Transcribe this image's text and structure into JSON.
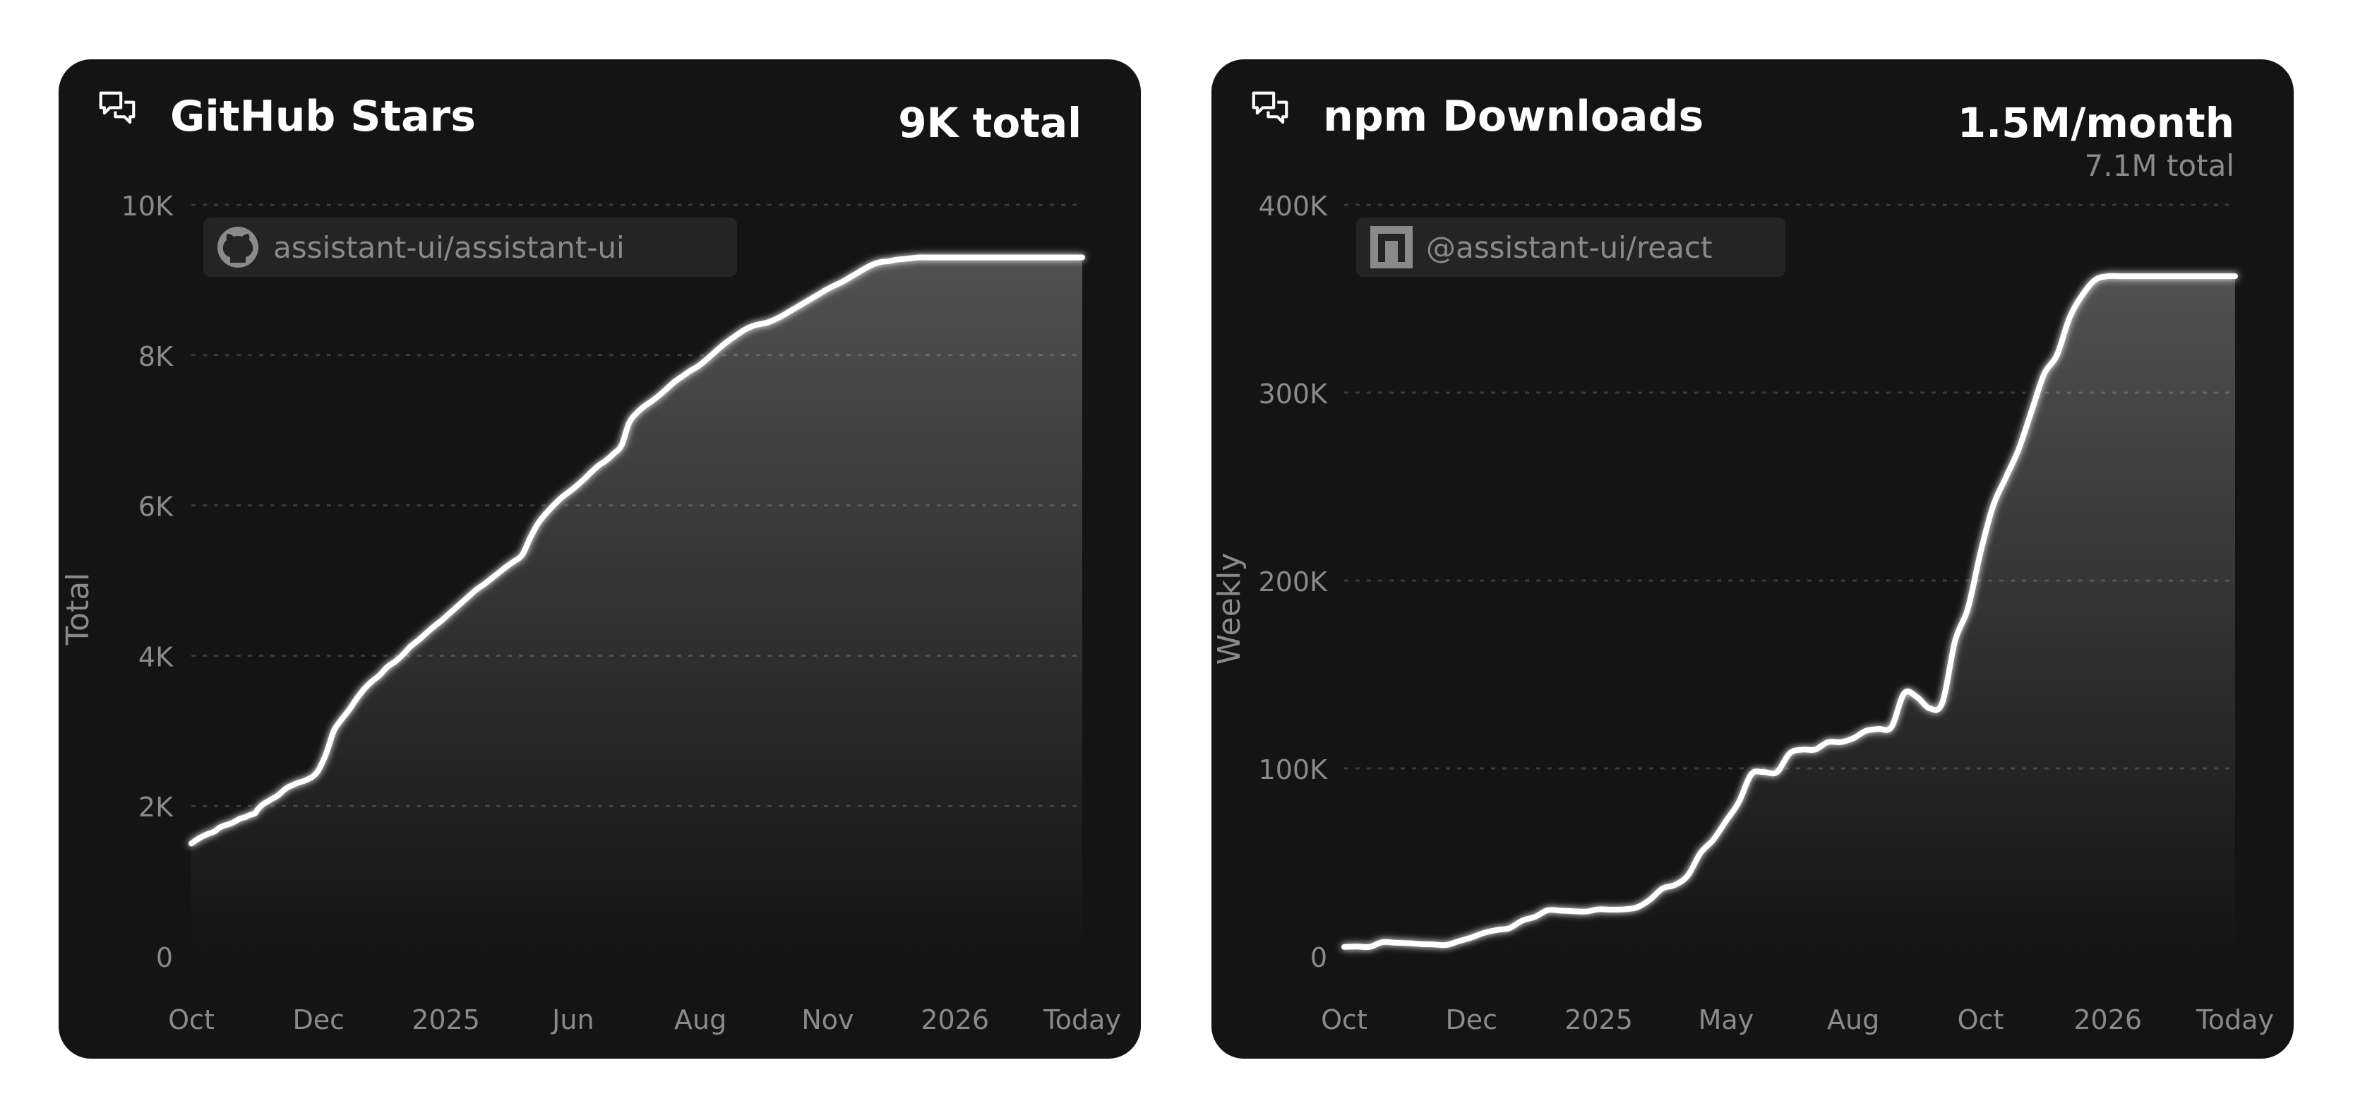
{
  "colors": {
    "card_bg": "#141414",
    "line": "#ffffff",
    "muted_text": "#8a8a8a",
    "grid": "#3a3a3a",
    "badge_bg": "#242424"
  },
  "chart_data": [
    {
      "type": "area",
      "title": "GitHub Stars",
      "title_icon": "chat-bubbles-icon",
      "total_label": "9K total",
      "ylabel": "Total",
      "ylim": [
        0,
        10000
      ],
      "y_ticks": [
        {
          "value": 0,
          "label": "0"
        },
        {
          "value": 2000,
          "label": "2K"
        },
        {
          "value": 4000,
          "label": "4K"
        },
        {
          "value": 6000,
          "label": "6K"
        },
        {
          "value": 8000,
          "label": "8K"
        },
        {
          "value": 10000,
          "label": "10K"
        }
      ],
      "x_ticks": [
        "Oct",
        "Dec",
        "2025",
        "Jun",
        "Aug",
        "Nov",
        "2026",
        "Today"
      ],
      "grid": true,
      "legend": {
        "label": "assistant-ui/assistant-ui",
        "icon": "github-icon",
        "position": "top-left"
      },
      "series": [
        {
          "x": [
            0,
            0.06,
            0.12,
            0.18,
            0.22,
            0.26,
            0.3,
            0.34,
            0.38,
            0.42,
            0.46,
            0.5,
            0.52,
            0.56,
            0.6,
            0.64,
            0.68,
            0.72,
            0.76,
            0.8,
            0.84,
            0.88,
            0.92,
            0.96,
            1.0,
            1.06,
            1.12,
            1.18,
            1.24,
            1.3,
            1.36,
            1.42,
            1.48,
            1.54,
            1.6,
            1.66,
            1.72,
            1.78,
            1.84,
            1.9,
            1.96,
            2.0,
            2.04,
            2.08,
            2.12,
            2.18,
            2.24,
            2.3,
            2.36,
            2.42,
            2.48,
            2.54,
            2.6,
            2.66,
            2.72,
            2.78,
            2.84,
            2.9,
            2.96,
            3.02,
            3.08,
            3.14,
            3.2,
            3.26,
            3.32,
            3.38,
            3.44,
            3.5,
            3.56,
            3.62,
            3.68,
            3.74,
            3.8,
            3.86,
            3.92,
            3.98,
            4.04,
            4.1,
            4.16,
            4.22,
            4.28,
            4.34,
            4.4,
            4.46,
            4.52,
            4.58,
            4.64,
            4.7,
            4.76,
            4.82,
            4.88,
            4.94,
            5.0,
            5.06,
            5.12,
            5.18,
            5.24,
            5.3,
            5.36,
            5.42,
            5.48,
            5.54,
            5.6,
            5.66,
            5.72,
            5.78,
            5.84,
            5.9,
            5.96,
            6.02,
            6.08,
            6.14,
            6.2,
            6.26,
            6.32,
            6.38,
            6.44,
            6.5,
            6.56,
            6.62,
            6.68,
            6.74,
            6.8,
            6.86,
            6.92,
            6.96,
            7.0
          ],
          "values": [
            1500,
            1570,
            1620,
            1660,
            1710,
            1740,
            1760,
            1790,
            1830,
            1850,
            1880,
            1900,
            1950,
            2020,
            2060,
            2100,
            2140,
            2200,
            2250,
            2280,
            2310,
            2330,
            2360,
            2400,
            2480,
            2700,
            3000,
            3150,
            3280,
            3430,
            3560,
            3660,
            3740,
            3850,
            3920,
            4010,
            4120,
            4200,
            4290,
            4380,
            4460,
            4520,
            4580,
            4640,
            4700,
            4790,
            4880,
            4950,
            5030,
            5110,
            5190,
            5260,
            5340,
            5560,
            5750,
            5880,
            5990,
            6090,
            6170,
            6250,
            6340,
            6440,
            6530,
            6600,
            6690,
            6800,
            7100,
            7230,
            7320,
            7390,
            7470,
            7560,
            7650,
            7720,
            7790,
            7850,
            7930,
            8020,
            8110,
            8190,
            8260,
            8330,
            8380,
            8410,
            8430,
            8470,
            8520,
            8580,
            8640,
            8700,
            8760,
            8820,
            8880,
            8930,
            8980,
            9040,
            9100,
            9160,
            9210,
            9240,
            9250,
            9270,
            9280,
            9290,
            9300,
            9300,
            9300,
            9300,
            9300,
            9300,
            9300,
            9300,
            9300,
            9300,
            9300,
            9300,
            9300,
            9300,
            9300,
            9300,
            9300,
            9300,
            9300,
            9300,
            9300,
            9300,
            9300
          ]
        }
      ]
    },
    {
      "type": "area",
      "title": "npm Downloads",
      "title_icon": "chat-bubbles-icon",
      "total_label": "1.5M/month",
      "subtotal_label": "7.1M total",
      "ylabel": "Weekly",
      "ylim": [
        0,
        400000
      ],
      "y_ticks": [
        {
          "value": 0,
          "label": "0"
        },
        {
          "value": 100000,
          "label": "100K"
        },
        {
          "value": 200000,
          "label": "200K"
        },
        {
          "value": 300000,
          "label": "300K"
        },
        {
          "value": 400000,
          "label": "400K"
        }
      ],
      "x_ticks": [
        "Oct",
        "Dec",
        "2025",
        "May",
        "Aug",
        "Oct",
        "2026",
        "Today"
      ],
      "grid": true,
      "legend": {
        "label": "@assistant-ui/react",
        "icon": "npm-icon",
        "position": "top-left"
      },
      "series": [
        {
          "x": [
            0,
            0.1,
            0.2,
            0.3,
            0.4,
            0.5,
            0.6,
            0.7,
            0.8,
            0.9,
            1.0,
            1.1,
            1.2,
            1.3,
            1.4,
            1.5,
            1.6,
            1.7,
            1.8,
            1.9,
            2.0,
            2.1,
            2.2,
            2.3,
            2.4,
            2.5,
            2.6,
            2.7,
            2.8,
            2.9,
            3.0,
            3.1,
            3.2,
            3.3,
            3.4,
            3.5,
            3.6,
            3.7,
            3.8,
            3.9,
            4.0,
            4.1,
            4.2,
            4.3,
            4.4,
            4.5,
            4.6,
            4.7,
            4.8,
            4.9,
            5.0,
            5.1,
            5.2,
            5.3,
            5.4,
            5.5,
            5.6,
            5.7,
            5.8,
            5.9,
            6.0,
            6.1,
            6.2,
            6.3,
            6.4,
            6.5,
            6.6,
            6.7,
            6.8,
            6.9,
            7.0
          ],
          "values": [
            5000,
            5200,
            5000,
            7500,
            7200,
            7000,
            6500,
            6300,
            6000,
            8000,
            10000,
            12500,
            14000,
            15000,
            19000,
            21000,
            24500,
            24300,
            24000,
            23800,
            25000,
            24800,
            25000,
            26000,
            30000,
            36000,
            38000,
            43000,
            55000,
            62000,
            72000,
            82000,
            97000,
            98000,
            98000,
            108000,
            110000,
            110000,
            114000,
            114000,
            116000,
            120000,
            121000,
            122000,
            140000,
            138000,
            132000,
            135000,
            168000,
            185000,
            215000,
            240000,
            255000,
            270000,
            290000,
            310000,
            320000,
            340000,
            352000,
            360000,
            362000,
            362000,
            362000,
            362000,
            362000,
            362000,
            362000,
            362000,
            362000,
            362000,
            362000
          ]
        }
      ]
    }
  ]
}
